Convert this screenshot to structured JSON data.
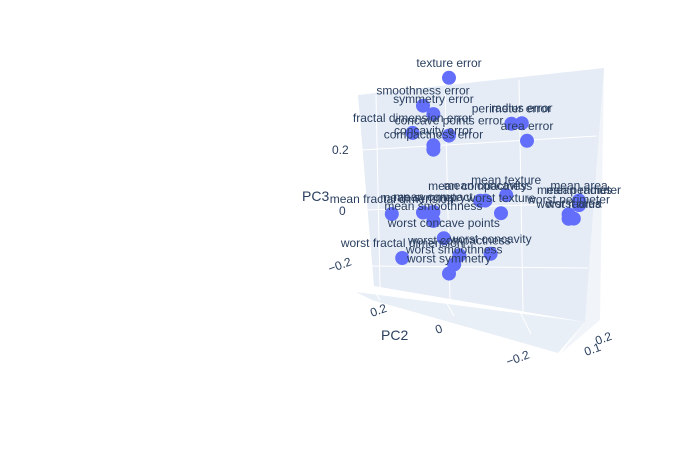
{
  "chart_data": {
    "type": "scatter3d",
    "axes": {
      "x": {
        "label": "PC2",
        "ticks": [
          "0.2",
          "0",
          "−0.2"
        ]
      },
      "y": {
        "label": "",
        "ticks": [
          "0.2",
          "0.1"
        ]
      },
      "z": {
        "label": "PC3",
        "ticks": [
          "0.2",
          "0",
          "−0.2"
        ]
      }
    },
    "marker_color": "#636efa",
    "text_color": "#2a3f5f",
    "points": [
      {
        "label": "texture error",
        "pc2": 0.05,
        "pc3": 0.3
      },
      {
        "label": "smoothness error",
        "pc2": 0.1,
        "pc3": 0.24
      },
      {
        "label": "symmetry error",
        "pc2": 0.08,
        "pc3": 0.22
      },
      {
        "label": "perimeter error",
        "pc2": -0.07,
        "pc3": 0.19
      },
      {
        "label": "radius error",
        "pc2": -0.09,
        "pc3": 0.19
      },
      {
        "label": "concave points error",
        "pc2": 0.05,
        "pc3": 0.17
      },
      {
        "label": "area error",
        "pc2": -0.1,
        "pc3": 0.15
      },
      {
        "label": "fractal dimension error",
        "pc2": 0.12,
        "pc3": 0.18
      },
      {
        "label": "concavity error",
        "pc2": 0.08,
        "pc3": 0.15
      },
      {
        "label": "compactness error",
        "pc2": 0.08,
        "pc3": 0.14
      },
      {
        "label": "mean texture",
        "pc2": -0.06,
        "pc3": 0.03
      },
      {
        "label": "mean compactness",
        "pc2": -0.01,
        "pc3": 0.02
      },
      {
        "label": "mean concavity",
        "pc2": -0.02,
        "pc3": 0.02
      },
      {
        "label": "mean fractal dimension",
        "pc2": 0.16,
        "pc3": 0.0
      },
      {
        "label": "mean symmetry",
        "pc2": 0.1,
        "pc3": 0.0
      },
      {
        "label": "mean compact",
        "pc2": 0.08,
        "pc3": 0.0
      },
      {
        "label": "mean smoothness",
        "pc2": 0.08,
        "pc3": -0.02
      },
      {
        "label": "mean area",
        "pc2": -0.2,
        "pc3": 0.01
      },
      {
        "label": "mean perimeter",
        "pc2": -0.2,
        "pc3": 0.0
      },
      {
        "label": "mean radius",
        "pc2": -0.2,
        "pc3": 0.0
      },
      {
        "label": "worst texture",
        "pc2": -0.05,
        "pc3": -0.01
      },
      {
        "label": "worst perimeter",
        "pc2": -0.18,
        "pc3": -0.02
      },
      {
        "label": "worst radius",
        "pc2": -0.18,
        "pc3": -0.03
      },
      {
        "label": "worst area",
        "pc2": -0.19,
        "pc3": -0.03
      },
      {
        "label": "worst concave points",
        "pc2": 0.06,
        "pc3": -0.06
      },
      {
        "label": "worst concavity",
        "pc2": -0.03,
        "pc3": -0.1
      },
      {
        "label": "worst fractal dimension",
        "pc2": 0.14,
        "pc3": -0.1
      },
      {
        "label": "worst compactness",
        "pc2": 0.03,
        "pc3": -0.1
      },
      {
        "label": "worst smoothness",
        "pc2": 0.04,
        "pc3": -0.12
      },
      {
        "label": "worst symmetry",
        "pc2": 0.05,
        "pc3": -0.14
      }
    ]
  }
}
